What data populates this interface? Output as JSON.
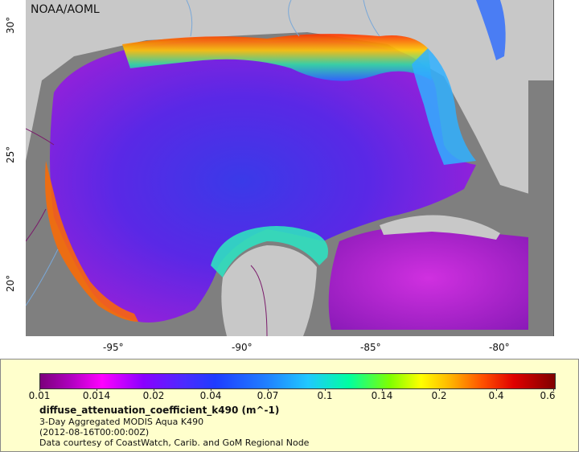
{
  "map": {
    "credit": "NOAA/AOML",
    "lat_ticks": [
      "30°",
      "25°",
      "20°"
    ],
    "lon_ticks": [
      "-95°",
      "-90°",
      "-85°",
      "-80°"
    ],
    "colors": {
      "land": "#c8c8c8",
      "no_data": "#808080",
      "rivers": "#7aa8d8",
      "borders": "#7a1a6a"
    }
  },
  "legend": {
    "colorbar_labels": [
      "0.01",
      "0.014",
      "0.02",
      "0.04",
      "0.07",
      "0.1",
      "0.14",
      "0.2",
      "0.4",
      "0.6"
    ],
    "title": "diffuse_attenuation_coefficient_k490 (m^-1)",
    "line1": "3-Day Aggregated MODIS Aqua K490",
    "line2": "(2012-08-16T00:00:00Z)",
    "line3": "Data courtesy of CoastWatch, Carib. and GoM Regional Node"
  }
}
